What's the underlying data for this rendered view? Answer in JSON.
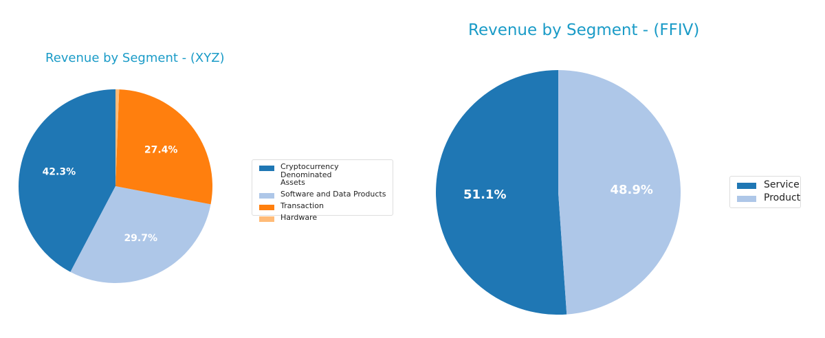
{
  "chart_data": [
    {
      "type": "pie",
      "title": "Revenue by Segment - (XYZ)",
      "categories": [
        "Cryptocurrency Denominated Assets",
        "Software and Data Products",
        "Transaction",
        "Hardware"
      ],
      "values": [
        42.3,
        29.7,
        27.4,
        0.6
      ],
      "labels": [
        "42.3%",
        "29.7%",
        "27.4%",
        ""
      ],
      "colors": [
        "#1f77b4",
        "#aec7e8",
        "#ff7f0e",
        "#ffbb78"
      ],
      "start_angle": 90,
      "direction": "counterclockwise",
      "legend_position": "right"
    },
    {
      "type": "pie",
      "title": "Revenue by Segment - (FFIV)",
      "categories": [
        "Service",
        "Product"
      ],
      "values": [
        51.1,
        48.9
      ],
      "labels": [
        "51.1%",
        "48.9%"
      ],
      "colors": [
        "#1f77b4",
        "#aec7e8"
      ],
      "start_angle": 90,
      "direction": "counterclockwise",
      "legend_position": "right"
    }
  ],
  "left": {
    "title": "Revenue by Segment - (XYZ)",
    "legend": [
      {
        "label": "Cryptocurrency Denominated\nAssets",
        "color": "#1f77b4"
      },
      {
        "label": "Software and Data Products",
        "color": "#aec7e8"
      },
      {
        "label": "Transaction",
        "color": "#ff7f0e"
      },
      {
        "label": "Hardware",
        "color": "#ffbb78"
      }
    ]
  },
  "right": {
    "title": "Revenue by Segment - (FFIV)",
    "legend": [
      {
        "label": "Service",
        "color": "#1f77b4"
      },
      {
        "label": "Product",
        "color": "#aec7e8"
      }
    ]
  }
}
